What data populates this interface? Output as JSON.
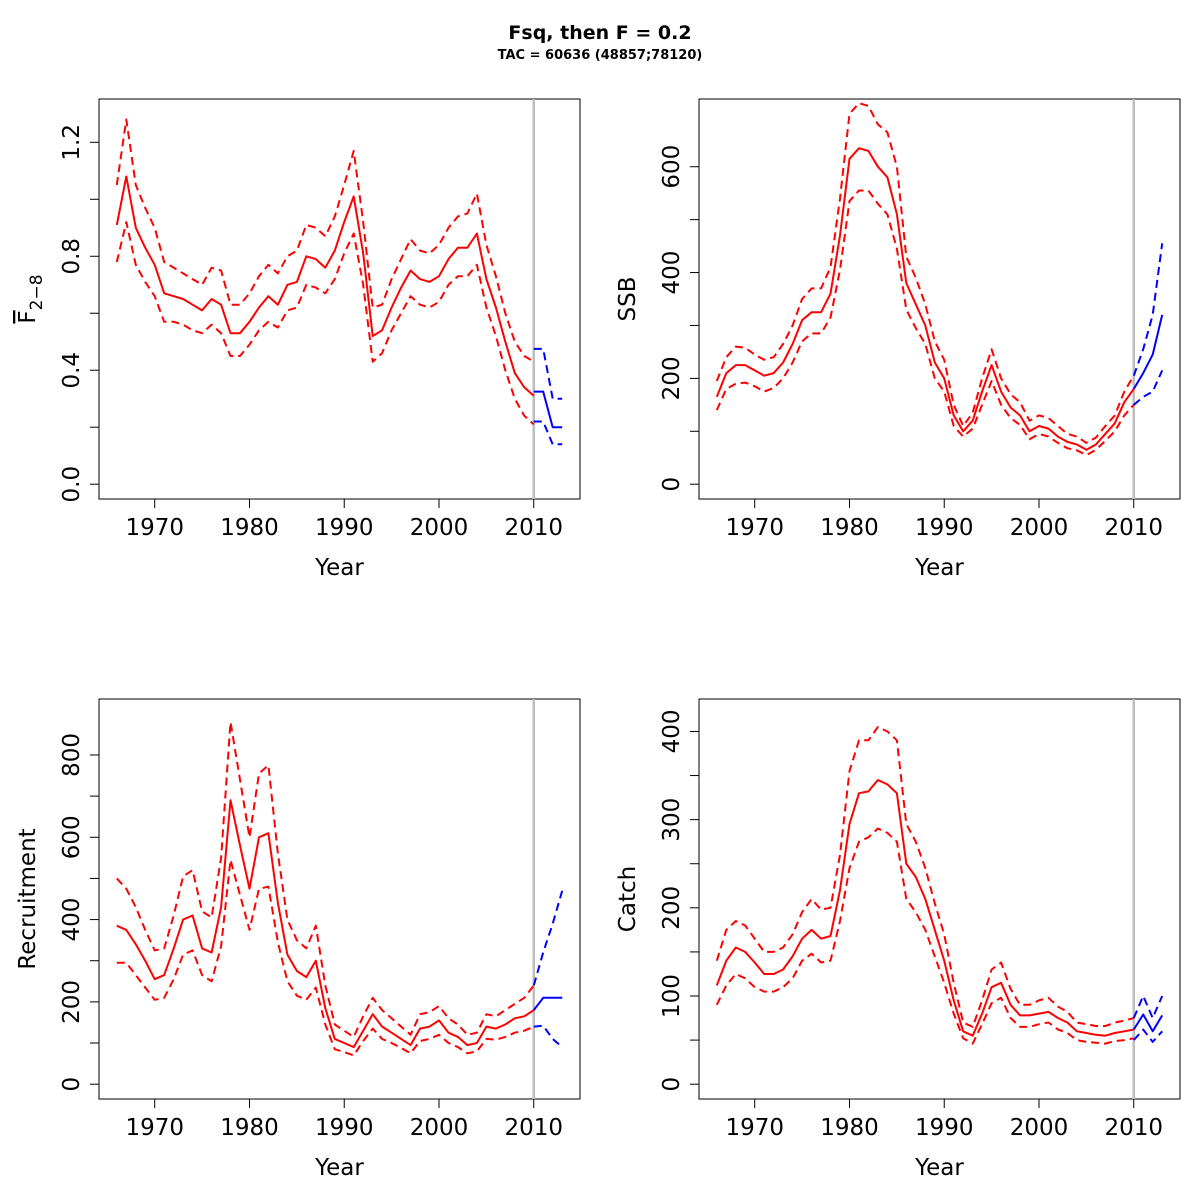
{
  "title": "Fsq, then F = 0.2",
  "subtitle": "TAC = 60636 (48857;78120)",
  "colors": {
    "historic": "#ff0000",
    "projection": "#0000ff",
    "divider": "#bebebe"
  },
  "chart_data": [
    {
      "type": "line",
      "name": "fbar",
      "ylabel": "F2-8",
      "ylabel_main": "F",
      "ylabel_sub": "2−8",
      "xlabel": "Year",
      "xlim": [
        1966,
        2013
      ],
      "ylim": [
        0,
        1.3
      ],
      "xticks": [
        "1970",
        "1980",
        "1990",
        "2000",
        "2010"
      ],
      "yticks": [
        "0.0",
        "0.4",
        "0.8",
        "1.2"
      ],
      "yticks_minor": [
        0.2,
        0.6,
        1.0
      ],
      "divider_year": 2010,
      "x": [
        1966,
        1967,
        1968,
        1969,
        1970,
        1971,
        1972,
        1973,
        1974,
        1975,
        1976,
        1977,
        1978,
        1979,
        1980,
        1981,
        1982,
        1983,
        1984,
        1985,
        1986,
        1987,
        1988,
        1989,
        1990,
        1991,
        1992,
        1993,
        1994,
        1995,
        1996,
        1997,
        1998,
        1999,
        2000,
        2001,
        2002,
        2003,
        2004,
        2005,
        2006,
        2007,
        2008,
        2009,
        2010
      ],
      "series": [
        {
          "role": "estimate",
          "values": [
            0.91,
            1.08,
            0.9,
            0.83,
            0.77,
            0.67,
            0.66,
            0.65,
            0.63,
            0.61,
            0.65,
            0.63,
            0.53,
            0.53,
            0.57,
            0.62,
            0.66,
            0.63,
            0.7,
            0.71,
            0.8,
            0.79,
            0.76,
            0.82,
            0.92,
            1.01,
            0.81,
            0.52,
            0.54,
            0.62,
            0.69,
            0.75,
            0.72,
            0.71,
            0.73,
            0.79,
            0.83,
            0.83,
            0.88,
            0.72,
            0.62,
            0.5,
            0.39,
            0.34,
            0.31
          ]
        },
        {
          "role": "upper",
          "values": [
            1.05,
            1.28,
            1.05,
            0.97,
            0.9,
            0.78,
            0.76,
            0.74,
            0.72,
            0.7,
            0.76,
            0.75,
            0.63,
            0.63,
            0.67,
            0.73,
            0.77,
            0.74,
            0.8,
            0.82,
            0.91,
            0.9,
            0.87,
            0.94,
            1.05,
            1.17,
            0.92,
            0.62,
            0.63,
            0.72,
            0.79,
            0.86,
            0.82,
            0.81,
            0.84,
            0.9,
            0.94,
            0.95,
            1.02,
            0.84,
            0.73,
            0.6,
            0.5,
            0.45,
            0.43
          ]
        },
        {
          "role": "lower",
          "values": [
            0.78,
            0.92,
            0.77,
            0.71,
            0.66,
            0.57,
            0.57,
            0.56,
            0.54,
            0.53,
            0.56,
            0.53,
            0.45,
            0.45,
            0.49,
            0.54,
            0.57,
            0.55,
            0.61,
            0.62,
            0.7,
            0.69,
            0.67,
            0.72,
            0.81,
            0.88,
            0.7,
            0.43,
            0.46,
            0.54,
            0.6,
            0.66,
            0.63,
            0.62,
            0.64,
            0.7,
            0.73,
            0.73,
            0.77,
            0.62,
            0.52,
            0.4,
            0.3,
            0.24,
            0.21
          ]
        }
      ],
      "projection": {
        "x": [
          2010,
          2011,
          2012,
          2013
        ],
        "series": [
          {
            "role": "estimate",
            "values": [
              0.325,
              0.325,
              0.2,
              0.2
            ]
          },
          {
            "role": "upper",
            "values": [
              0.475,
              0.475,
              0.3,
              0.3
            ]
          },
          {
            "role": "lower",
            "values": [
              0.22,
              0.22,
              0.14,
              0.14
            ]
          }
        ]
      }
    },
    {
      "type": "line",
      "name": "ssb",
      "ylabel": "SSB",
      "xlabel": "Year",
      "xlim": [
        1966,
        2013
      ],
      "ylim": [
        0,
        700
      ],
      "xticks": [
        "1970",
        "1980",
        "1990",
        "2000",
        "2010"
      ],
      "yticks": [
        "0",
        "200",
        "400",
        "600"
      ],
      "yticks_minor": [
        100,
        300,
        500
      ],
      "divider_year": 2010,
      "x": [
        1966,
        1967,
        1968,
        1969,
        1970,
        1971,
        1972,
        1973,
        1974,
        1975,
        1976,
        1977,
        1978,
        1979,
        1980,
        1981,
        1982,
        1983,
        1984,
        1985,
        1986,
        1987,
        1988,
        1989,
        1990,
        1991,
        1992,
        1993,
        1994,
        1995,
        1996,
        1997,
        1998,
        1999,
        2000,
        2001,
        2002,
        2003,
        2004,
        2005,
        2006,
        2007,
        2008,
        2009,
        2010
      ],
      "series": [
        {
          "role": "estimate",
          "values": [
            165,
            210,
            225,
            225,
            215,
            205,
            210,
            230,
            265,
            310,
            325,
            325,
            360,
            470,
            615,
            635,
            630,
            600,
            580,
            510,
            380,
            340,
            300,
            230,
            200,
            130,
            100,
            120,
            175,
            225,
            175,
            145,
            130,
            100,
            110,
            105,
            90,
            80,
            75,
            65,
            75,
            95,
            115,
            155,
            180
          ]
        },
        {
          "role": "upper",
          "values": [
            195,
            240,
            260,
            258,
            245,
            235,
            240,
            265,
            300,
            350,
            370,
            370,
            410,
            540,
            700,
            720,
            715,
            680,
            665,
            600,
            430,
            390,
            340,
            270,
            235,
            150,
            110,
            135,
            200,
            255,
            200,
            170,
            155,
            120,
            130,
            125,
            110,
            95,
            90,
            78,
            88,
            110,
            130,
            175,
            205
          ]
        },
        {
          "role": "lower",
          "values": [
            140,
            180,
            190,
            192,
            185,
            175,
            182,
            200,
            230,
            270,
            285,
            285,
            315,
            405,
            535,
            555,
            555,
            530,
            510,
            445,
            330,
            295,
            265,
            200,
            175,
            110,
            90,
            105,
            150,
            195,
            150,
            125,
            112,
            85,
            95,
            90,
            78,
            68,
            64,
            55,
            65,
            82,
            100,
            130,
            150
          ]
        }
      ],
      "projection": {
        "x": [
          2010,
          2011,
          2012,
          2013
        ],
        "series": [
          {
            "role": "estimate",
            "values": [
              180,
              210,
              245,
              320
            ]
          },
          {
            "role": "upper",
            "values": [
              205,
              255,
              320,
              455
            ]
          },
          {
            "role": "lower",
            "values": [
              150,
              165,
              175,
              215
            ]
          }
        ]
      }
    },
    {
      "type": "line",
      "name": "recruitment",
      "ylabel": "Recruitment",
      "xlabel": "Year",
      "xlim": [
        1966,
        2013
      ],
      "ylim": [
        0,
        900
      ],
      "xticks": [
        "1970",
        "1980",
        "1990",
        "2000",
        "2010"
      ],
      "yticks": [
        "0",
        "200",
        "400",
        "600",
        "800"
      ],
      "yticks_minor": [
        100,
        300,
        500,
        700
      ],
      "divider_year": 2010,
      "x": [
        1966,
        1967,
        1968,
        1969,
        1970,
        1971,
        1972,
        1973,
        1974,
        1975,
        1976,
        1977,
        1978,
        1979,
        1980,
        1981,
        1982,
        1983,
        1984,
        1985,
        1986,
        1987,
        1988,
        1989,
        1990,
        1991,
        1992,
        1993,
        1994,
        1995,
        1996,
        1997,
        1998,
        1999,
        2000,
        2001,
        2002,
        2003,
        2004,
        2005,
        2006,
        2007,
        2008,
        2009,
        2010
      ],
      "series": [
        {
          "role": "estimate",
          "values": [
            385,
            375,
            340,
            300,
            255,
            265,
            330,
            400,
            410,
            330,
            320,
            430,
            690,
            580,
            475,
            600,
            610,
            440,
            315,
            275,
            260,
            300,
            185,
            110,
            100,
            90,
            130,
            170,
            140,
            125,
            110,
            95,
            135,
            140,
            155,
            125,
            115,
            95,
            100,
            140,
            135,
            145,
            160,
            165,
            180
          ]
        },
        {
          "role": "upper",
          "values": [
            500,
            475,
            430,
            375,
            325,
            330,
            410,
            505,
            520,
            420,
            405,
            550,
            880,
            740,
            600,
            755,
            775,
            560,
            400,
            350,
            330,
            385,
            240,
            145,
            130,
            115,
            165,
            210,
            180,
            160,
            140,
            120,
            170,
            175,
            190,
            160,
            145,
            120,
            125,
            170,
            165,
            180,
            195,
            210,
            240
          ]
        },
        {
          "role": "lower",
          "values": [
            295,
            295,
            265,
            235,
            205,
            210,
            255,
            315,
            325,
            265,
            250,
            335,
            545,
            460,
            375,
            475,
            480,
            345,
            250,
            215,
            205,
            235,
            145,
            85,
            78,
            70,
            105,
            135,
            110,
            100,
            88,
            75,
            105,
            110,
            120,
            100,
            90,
            75,
            80,
            110,
            108,
            115,
            125,
            130,
            140
          ]
        }
      ],
      "projection": {
        "x": [
          2010,
          2011,
          2012,
          2013
        ],
        "series": [
          {
            "role": "estimate",
            "values": [
              180,
              210,
              210,
              210
            ]
          },
          {
            "role": "upper",
            "values": [
              240,
              320,
              390,
              470
            ]
          },
          {
            "role": "lower",
            "values": [
              140,
              142,
              110,
              90
            ]
          }
        ]
      }
    },
    {
      "type": "line",
      "name": "catch",
      "ylabel": "Catch",
      "xlabel": "Year",
      "xlim": [
        1966,
        2013
      ],
      "ylim": [
        0,
        420
      ],
      "xticks": [
        "1970",
        "1980",
        "1990",
        "2000",
        "2010"
      ],
      "yticks": [
        "0",
        "100",
        "200",
        "300",
        "400"
      ],
      "yticks_minor": [
        50,
        150,
        250,
        350
      ],
      "divider_year": 2010,
      "x": [
        1966,
        1967,
        1968,
        1969,
        1970,
        1971,
        1972,
        1973,
        1974,
        1975,
        1976,
        1977,
        1978,
        1979,
        1980,
        1981,
        1982,
        1983,
        1984,
        1985,
        1986,
        1987,
        1988,
        1989,
        1990,
        1991,
        1992,
        1993,
        1994,
        1995,
        1996,
        1997,
        1998,
        1999,
        2000,
        2001,
        2002,
        2003,
        2004,
        2005,
        2006,
        2007,
        2008,
        2009,
        2010
      ],
      "series": [
        {
          "role": "estimate",
          "values": [
            112,
            140,
            155,
            150,
            138,
            125,
            125,
            130,
            145,
            165,
            175,
            165,
            168,
            220,
            295,
            330,
            332,
            345,
            340,
            330,
            250,
            235,
            210,
            175,
            140,
            95,
            60,
            55,
            80,
            110,
            115,
            90,
            78,
            78,
            80,
            82,
            75,
            70,
            60,
            58,
            56,
            55,
            58,
            60,
            62
          ]
        },
        {
          "role": "upper",
          "values": [
            140,
            175,
            185,
            180,
            165,
            150,
            150,
            155,
            170,
            195,
            210,
            198,
            200,
            260,
            355,
            390,
            390,
            405,
            400,
            390,
            295,
            275,
            245,
            205,
            170,
            115,
            70,
            65,
            95,
            130,
            138,
            108,
            90,
            90,
            95,
            98,
            88,
            82,
            70,
            68,
            66,
            66,
            70,
            72,
            75
          ]
        },
        {
          "role": "lower",
          "values": [
            90,
            112,
            125,
            120,
            110,
            105,
            105,
            110,
            120,
            140,
            148,
            138,
            140,
            185,
            245,
            275,
            280,
            290,
            285,
            275,
            210,
            195,
            175,
            145,
            115,
            80,
            52,
            46,
            68,
            92,
            98,
            75,
            65,
            65,
            68,
            70,
            62,
            58,
            50,
            48,
            47,
            46,
            49,
            50,
            52
          ]
        }
      ],
      "projection": {
        "x": [
          2010,
          2011,
          2012,
          2013
        ],
        "series": [
          {
            "role": "estimate",
            "values": [
              62,
              79,
              60,
              78
            ]
          },
          {
            "role": "upper",
            "values": [
              75,
              100,
              75,
              100
            ]
          },
          {
            "role": "lower",
            "values": [
              50,
              62,
              48,
              60
            ]
          }
        ]
      }
    }
  ]
}
